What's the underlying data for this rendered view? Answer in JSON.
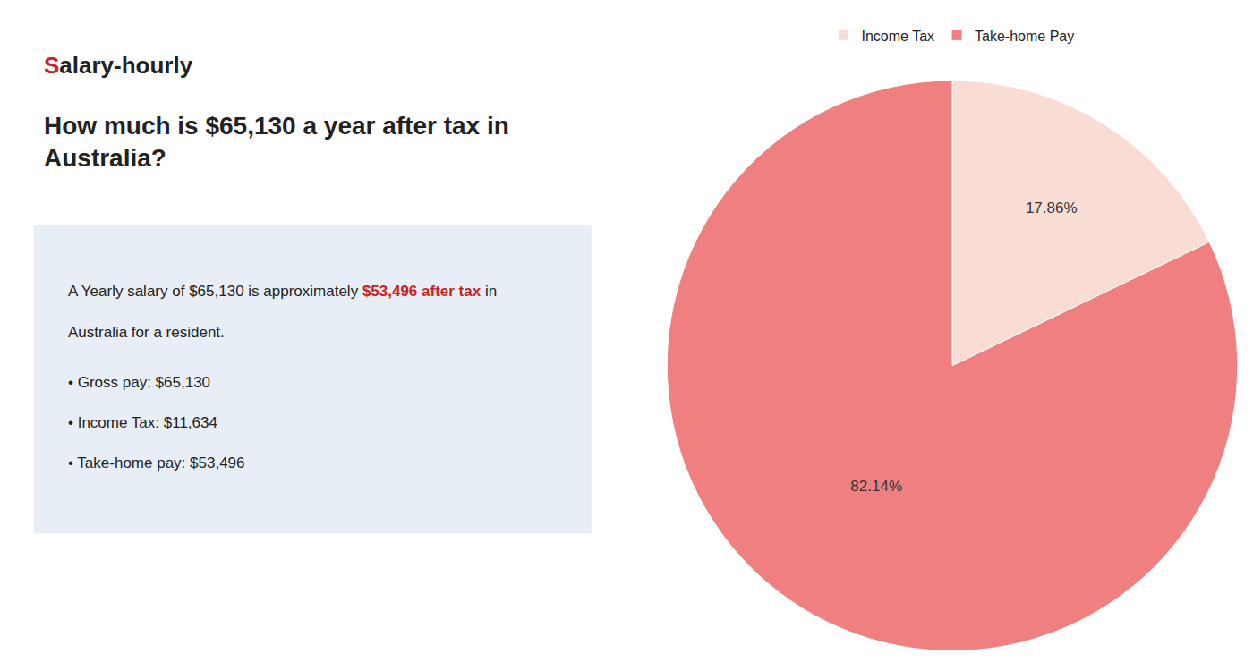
{
  "chart_data": {
    "type": "pie",
    "title": "How much is $65,130 a year after tax in\nAustralia?",
    "categories": [
      "Income Tax",
      "Take-home Pay"
    ],
    "values": [
      17.86,
      82.14
    ],
    "value_labels": [
      "17.86%",
      "82.14%"
    ],
    "colors": [
      "#f9ddd5",
      "#f08080"
    ],
    "data_labels": true,
    "legend": "top",
    "annotations": [
      [
        {
          "text": "S",
          "color": "#cc2222"
        },
        {
          "text": "alary-hourly"
        }
      ],
      [
        {
          "text": "A Yearly salary of $65,130 is approximately "
        },
        {
          "text": "$53,496 after tax",
          "color": "#cc2222"
        },
        {
          "text": " in"
        }
      ],
      [
        {
          "text": "Australia for a resident."
        }
      ],
      [
        {
          "text": "• Gross pay: $65,130"
        }
      ],
      [
        {
          "text": "• Income Tax: $11,634"
        }
      ],
      [
        {
          "text": "• Take-home pay: $53,496"
        }
      ]
    ]
  }
}
